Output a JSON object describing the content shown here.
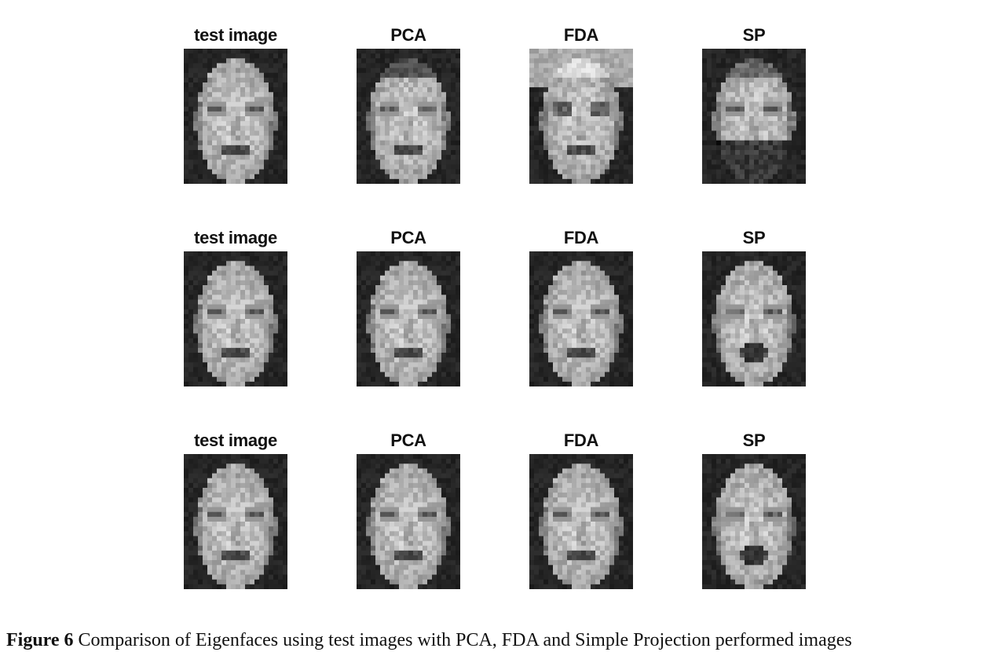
{
  "figure": {
    "rows": [
      {
        "panels": [
          {
            "title": "test image",
            "face": "face-test-image"
          },
          {
            "title": "PCA",
            "face": "face-pca-match"
          },
          {
            "title": "FDA",
            "face": "face-fda-match"
          },
          {
            "title": "SP",
            "face": "face-sp-match"
          }
        ]
      },
      {
        "panels": [
          {
            "title": "test image",
            "face": "face-test-image"
          },
          {
            "title": "PCA",
            "face": "face-pca-match"
          },
          {
            "title": "FDA",
            "face": "face-fda-match"
          },
          {
            "title": "SP",
            "face": "face-sp-match"
          }
        ]
      },
      {
        "panels": [
          {
            "title": "test image",
            "face": "face-test-image"
          },
          {
            "title": "PCA",
            "face": "face-pca-match"
          },
          {
            "title": "FDA",
            "face": "face-fda-match"
          },
          {
            "title": "SP",
            "face": "face-sp-match"
          }
        ]
      }
    ]
  },
  "caption": {
    "label": "Figure 6",
    "text": " Comparison of Eigenfaces using test images with PCA, FDA and Simple Projection performed images"
  }
}
